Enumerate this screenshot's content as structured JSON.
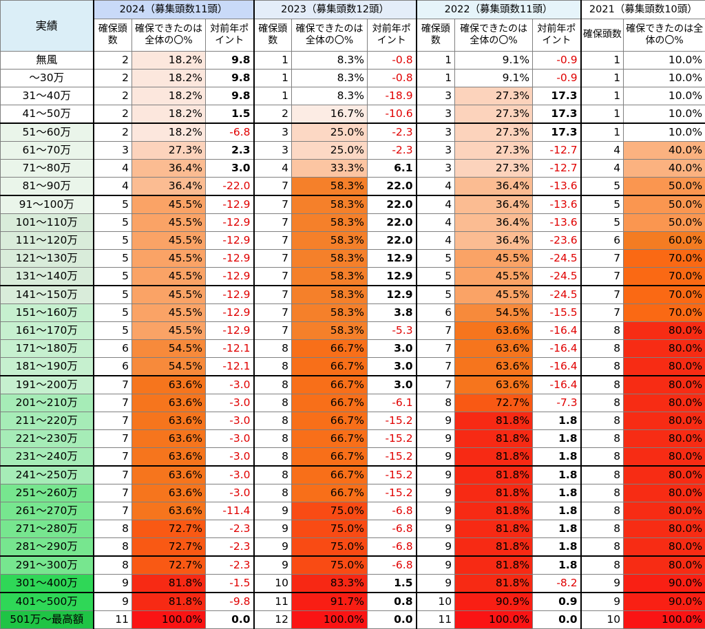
{
  "chart_data": {
    "type": "table",
    "row_header": "実績",
    "year_groups": [
      {
        "key": "2024",
        "title": "2024（募集頭数11頭）",
        "bg": "#c9daf8",
        "with_points": true
      },
      {
        "key": "2023",
        "title": "2023（募集頭数12頭）",
        "bg": "#e4edf9",
        "with_points": true
      },
      {
        "key": "2022",
        "title": "2022（募集頭数11頭）",
        "bg": "#e6f4fa",
        "with_points": true
      },
      {
        "key": "2021",
        "title": "2021（募集頭数10頭）",
        "bg": "#ffffff",
        "with_points": false
      }
    ],
    "sub_headers": {
      "count": "確保頭数",
      "pct": "確保できたのは全体の〇%",
      "points": "対前年ポイント"
    },
    "group_starts": [
      4,
      8,
      13,
      18,
      23,
      28,
      30
    ],
    "rows": [
      {
        "label": "無風",
        "cat_bg": "#ffffff",
        "y2024": [
          "2",
          "18.2%",
          "9.8"
        ],
        "y2023": [
          "1",
          "8.3%",
          "-0.8"
        ],
        "y2022": [
          "1",
          "9.1%",
          "-0.9"
        ],
        "y2021": [
          "1",
          "10.0%"
        ]
      },
      {
        "label": "～30万",
        "cat_bg": "#ffffff",
        "y2024": [
          "2",
          "18.2%",
          "9.8"
        ],
        "y2023": [
          "1",
          "8.3%",
          "-0.8"
        ],
        "y2022": [
          "1",
          "9.1%",
          "-0.9"
        ],
        "y2021": [
          "1",
          "10.0%"
        ]
      },
      {
        "label": "31～40万",
        "cat_bg": "#ffffff",
        "y2024": [
          "2",
          "18.2%",
          "9.8"
        ],
        "y2023": [
          "1",
          "8.3%",
          "-18.9"
        ],
        "y2022": [
          "3",
          "27.3%",
          "17.3"
        ],
        "y2021": [
          "1",
          "10.0%"
        ]
      },
      {
        "label": "41～50万",
        "cat_bg": "#ffffff",
        "y2024": [
          "2",
          "18.2%",
          "1.5"
        ],
        "y2023": [
          "2",
          "16.7%",
          "-10.6"
        ],
        "y2022": [
          "3",
          "27.3%",
          "17.3"
        ],
        "y2021": [
          "1",
          "10.0%"
        ]
      },
      {
        "label": "51～60万",
        "cat_bg": "#eaf5ea",
        "y2024": [
          "2",
          "18.2%",
          "-6.8"
        ],
        "y2023": [
          "3",
          "25.0%",
          "-2.3"
        ],
        "y2022": [
          "3",
          "27.3%",
          "17.3"
        ],
        "y2021": [
          "1",
          "10.0%"
        ]
      },
      {
        "label": "61～70万",
        "cat_bg": "#eaf5ea",
        "y2024": [
          "3",
          "27.3%",
          "2.3"
        ],
        "y2023": [
          "3",
          "25.0%",
          "-2.3"
        ],
        "y2022": [
          "3",
          "27.3%",
          "-12.7"
        ],
        "y2021": [
          "4",
          "40.0%"
        ]
      },
      {
        "label": "71～80万",
        "cat_bg": "#eaf5ea",
        "y2024": [
          "4",
          "36.4%",
          "3.0"
        ],
        "y2023": [
          "4",
          "33.3%",
          "6.1"
        ],
        "y2022": [
          "3",
          "27.3%",
          "-12.7"
        ],
        "y2021": [
          "4",
          "40.0%"
        ]
      },
      {
        "label": "81～90万",
        "cat_bg": "#eaf5ea",
        "y2024": [
          "4",
          "36.4%",
          "-22.0"
        ],
        "y2023": [
          "7",
          "58.3%",
          "22.0"
        ],
        "y2022": [
          "4",
          "36.4%",
          "-13.6"
        ],
        "y2021": [
          "5",
          "50.0%"
        ]
      },
      {
        "label": "91～100万",
        "cat_bg": "#eaf5ea",
        "y2024": [
          "5",
          "45.5%",
          "-12.9"
        ],
        "y2023": [
          "7",
          "58.3%",
          "22.0"
        ],
        "y2022": [
          "4",
          "36.4%",
          "-13.6"
        ],
        "y2021": [
          "5",
          "50.0%"
        ]
      },
      {
        "label": "101～110万",
        "cat_bg": "#d9ecda",
        "y2024": [
          "5",
          "45.5%",
          "-12.9"
        ],
        "y2023": [
          "7",
          "58.3%",
          "22.0"
        ],
        "y2022": [
          "4",
          "36.4%",
          "-13.6"
        ],
        "y2021": [
          "5",
          "50.0%"
        ]
      },
      {
        "label": "111～120万",
        "cat_bg": "#d9ecda",
        "y2024": [
          "5",
          "45.5%",
          "-12.9"
        ],
        "y2023": [
          "7",
          "58.3%",
          "22.0"
        ],
        "y2022": [
          "4",
          "36.4%",
          "-23.6"
        ],
        "y2021": [
          "6",
          "60.0%"
        ]
      },
      {
        "label": "121～130万",
        "cat_bg": "#d9ecda",
        "y2024": [
          "5",
          "45.5%",
          "-12.9"
        ],
        "y2023": [
          "7",
          "58.3%",
          "12.9"
        ],
        "y2022": [
          "5",
          "45.5%",
          "-24.5"
        ],
        "y2021": [
          "7",
          "70.0%"
        ]
      },
      {
        "label": "131～140万",
        "cat_bg": "#d9ecda",
        "y2024": [
          "5",
          "45.5%",
          "-12.9"
        ],
        "y2023": [
          "7",
          "58.3%",
          "12.9"
        ],
        "y2022": [
          "5",
          "45.5%",
          "-24.5"
        ],
        "y2021": [
          "7",
          "70.0%"
        ]
      },
      {
        "label": "141～150万",
        "cat_bg": "#d9ecda",
        "y2024": [
          "5",
          "45.5%",
          "-12.9"
        ],
        "y2023": [
          "7",
          "58.3%",
          "12.9"
        ],
        "y2022": [
          "5",
          "45.5%",
          "-24.5"
        ],
        "y2021": [
          "7",
          "70.0%"
        ]
      },
      {
        "label": "151～160万",
        "cat_bg": "#c6f0cf",
        "y2024": [
          "5",
          "45.5%",
          "-12.9"
        ],
        "y2023": [
          "7",
          "58.3%",
          "3.8"
        ],
        "y2022": [
          "6",
          "54.5%",
          "-15.5"
        ],
        "y2021": [
          "7",
          "70.0%"
        ]
      },
      {
        "label": "161～170万",
        "cat_bg": "#c6f0cf",
        "y2024": [
          "5",
          "45.5%",
          "-12.9"
        ],
        "y2023": [
          "7",
          "58.3%",
          "-5.3"
        ],
        "y2022": [
          "7",
          "63.6%",
          "-16.4"
        ],
        "y2021": [
          "8",
          "80.0%"
        ]
      },
      {
        "label": "171～180万",
        "cat_bg": "#c6f0cf",
        "y2024": [
          "6",
          "54.5%",
          "-12.1"
        ],
        "y2023": [
          "8",
          "66.7%",
          "3.0"
        ],
        "y2022": [
          "7",
          "63.6%",
          "-16.4"
        ],
        "y2021": [
          "8",
          "80.0%"
        ]
      },
      {
        "label": "181～190万",
        "cat_bg": "#c6f0cf",
        "y2024": [
          "6",
          "54.5%",
          "-12.1"
        ],
        "y2023": [
          "8",
          "66.7%",
          "3.0"
        ],
        "y2022": [
          "7",
          "63.6%",
          "-16.4"
        ],
        "y2021": [
          "8",
          "80.0%"
        ]
      },
      {
        "label": "191～200万",
        "cat_bg": "#c6f0cf",
        "y2024": [
          "7",
          "63.6%",
          "-3.0"
        ],
        "y2023": [
          "8",
          "66.7%",
          "3.0"
        ],
        "y2022": [
          "7",
          "63.6%",
          "-16.4"
        ],
        "y2021": [
          "8",
          "80.0%"
        ]
      },
      {
        "label": "201～210万",
        "cat_bg": "#a6ecb7",
        "y2024": [
          "7",
          "63.6%",
          "-3.0"
        ],
        "y2023": [
          "8",
          "66.7%",
          "-6.1"
        ],
        "y2022": [
          "8",
          "72.7%",
          "-7.3"
        ],
        "y2021": [
          "8",
          "80.0%"
        ]
      },
      {
        "label": "211～220万",
        "cat_bg": "#a6ecb7",
        "y2024": [
          "7",
          "63.6%",
          "-3.0"
        ],
        "y2023": [
          "8",
          "66.7%",
          "-15.2"
        ],
        "y2022": [
          "9",
          "81.8%",
          "1.8"
        ],
        "y2021": [
          "8",
          "80.0%"
        ]
      },
      {
        "label": "221～230万",
        "cat_bg": "#a6ecb7",
        "y2024": [
          "7",
          "63.6%",
          "-3.0"
        ],
        "y2023": [
          "8",
          "66.7%",
          "-15.2"
        ],
        "y2022": [
          "9",
          "81.8%",
          "1.8"
        ],
        "y2021": [
          "8",
          "80.0%"
        ]
      },
      {
        "label": "231～240万",
        "cat_bg": "#a6ecb7",
        "y2024": [
          "7",
          "63.6%",
          "-3.0"
        ],
        "y2023": [
          "8",
          "66.7%",
          "-15.2"
        ],
        "y2022": [
          "9",
          "81.8%",
          "1.8"
        ],
        "y2021": [
          "8",
          "80.0%"
        ]
      },
      {
        "label": "241～250万",
        "cat_bg": "#a6ecb7",
        "y2024": [
          "7",
          "63.6%",
          "-3.0"
        ],
        "y2023": [
          "8",
          "66.7%",
          "-15.2"
        ],
        "y2022": [
          "9",
          "81.8%",
          "1.8"
        ],
        "y2021": [
          "8",
          "80.0%"
        ]
      },
      {
        "label": "251～260万",
        "cat_bg": "#77e68f",
        "y2024": [
          "7",
          "63.6%",
          "-3.0"
        ],
        "y2023": [
          "8",
          "66.7%",
          "-15.2"
        ],
        "y2022": [
          "9",
          "81.8%",
          "1.8"
        ],
        "y2021": [
          "8",
          "80.0%"
        ]
      },
      {
        "label": "261～270万",
        "cat_bg": "#77e68f",
        "y2024": [
          "7",
          "63.6%",
          "-11.4"
        ],
        "y2023": [
          "9",
          "75.0%",
          "-6.8"
        ],
        "y2022": [
          "9",
          "81.8%",
          "1.8"
        ],
        "y2021": [
          "8",
          "80.0%"
        ]
      },
      {
        "label": "271～280万",
        "cat_bg": "#77e68f",
        "y2024": [
          "8",
          "72.7%",
          "-2.3"
        ],
        "y2023": [
          "9",
          "75.0%",
          "-6.8"
        ],
        "y2022": [
          "9",
          "81.8%",
          "1.8"
        ],
        "y2021": [
          "8",
          "80.0%"
        ]
      },
      {
        "label": "281～290万",
        "cat_bg": "#77e68f",
        "y2024": [
          "8",
          "72.7%",
          "-2.3"
        ],
        "y2023": [
          "9",
          "75.0%",
          "-6.8"
        ],
        "y2022": [
          "9",
          "81.8%",
          "1.8"
        ],
        "y2021": [
          "8",
          "80.0%"
        ]
      },
      {
        "label": "291～300万",
        "cat_bg": "#77e68f",
        "y2024": [
          "8",
          "72.7%",
          "-2.3"
        ],
        "y2023": [
          "9",
          "75.0%",
          "-6.8"
        ],
        "y2022": [
          "9",
          "81.8%",
          "1.8"
        ],
        "y2021": [
          "8",
          "80.0%"
        ]
      },
      {
        "label": "301～400万",
        "cat_bg": "#2fd757",
        "y2024": [
          "9",
          "81.8%",
          "-1.5"
        ],
        "y2023": [
          "10",
          "83.3%",
          "1.5"
        ],
        "y2022": [
          "9",
          "81.8%",
          "-8.2"
        ],
        "y2021": [
          "9",
          "90.0%"
        ]
      },
      {
        "label": "401～500万",
        "cat_bg": "#2fd757",
        "y2024": [
          "9",
          "81.8%",
          "-9.8"
        ],
        "y2023": [
          "11",
          "91.7%",
          "0.8"
        ],
        "y2022": [
          "10",
          "90.9%",
          "0.9"
        ],
        "y2021": [
          "9",
          "90.0%"
        ]
      },
      {
        "label": "501万～最高額",
        "cat_bg": "#1fc445",
        "y2024": [
          "11",
          "100.0%",
          "0.0"
        ],
        "y2023": [
          "12",
          "100.0%",
          "0.0"
        ],
        "y2022": [
          "11",
          "100.0%",
          "0.0"
        ],
        "y2021": [
          "10",
          "100.0%"
        ]
      }
    ]
  }
}
